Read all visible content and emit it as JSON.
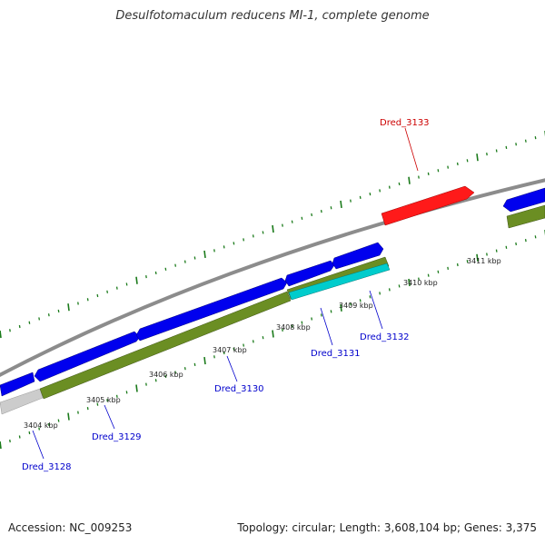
{
  "title": "Desulfotomaculum reducens MI-1, complete genome",
  "footer": {
    "accession": "Accession: NC_009253",
    "summary": "Topology: circular; Length: 3,608,104 bp; Genes: 3,375"
  },
  "colors": {
    "background": "#ffffff",
    "backbone": "#8c8c8c",
    "forward_gene": "#0000ee",
    "reverse_gene": "#6b8e23",
    "highlight_forward_gene": "#ff1a1a",
    "highlight_reverse_gene": "#00cccc",
    "grey_feature": "#cccccc",
    "tick": "#1a7a1a",
    "label_blue": "#0000cc",
    "label_red": "#cc0000"
  },
  "ticks": [
    {
      "label": "3404 kbp"
    },
    {
      "label": "3405 kbp"
    },
    {
      "label": "3406 kbp"
    },
    {
      "label": "3407 kbp"
    },
    {
      "label": "3408 kbp"
    },
    {
      "label": "3409 kbp"
    },
    {
      "label": "3410 kbp"
    },
    {
      "label": "3411 kbp"
    }
  ],
  "gene_labels": [
    {
      "name": "Dred_3128",
      "color": "label_blue"
    },
    {
      "name": "Dred_3129",
      "color": "label_blue"
    },
    {
      "name": "Dred_3130",
      "color": "label_blue"
    },
    {
      "name": "Dred_3131",
      "color": "label_blue"
    },
    {
      "name": "Dred_3132",
      "color": "label_blue"
    },
    {
      "name": "Dred_3133",
      "color": "label_red"
    }
  ]
}
